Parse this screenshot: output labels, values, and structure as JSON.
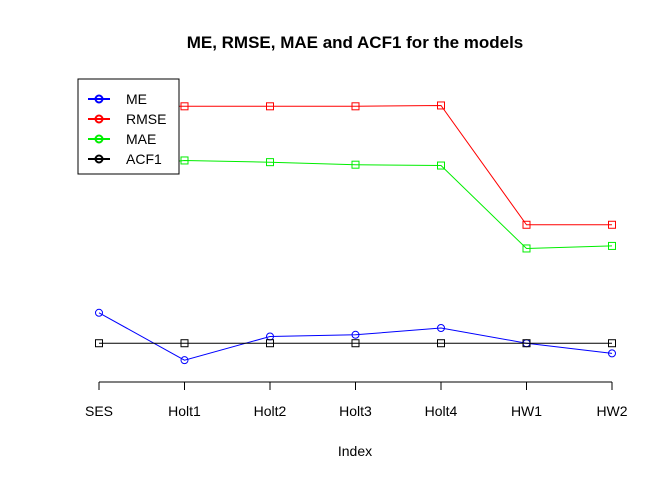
{
  "chart_data": {
    "type": "line",
    "title": "ME, RMSE, MAE and ACF1 for the models",
    "xlabel": "Index",
    "ylabel": "",
    "categories": [
      "SES",
      "Holt1",
      "Holt2",
      "Holt3",
      "Holt4",
      "HW1",
      "HW2"
    ],
    "ylim": [
      -17,
      165
    ],
    "grid": false,
    "legend_position": "top-left",
    "series": [
      {
        "name": "ME",
        "color": "#0000ff",
        "marker": "circle",
        "values": [
          18,
          -10,
          4,
          5,
          9,
          0,
          -6
        ]
      },
      {
        "name": "RMSE",
        "color": "#ff0000",
        "marker": "square",
        "values": [
          140,
          140,
          140,
          140,
          140.5,
          70,
          70
        ]
      },
      {
        "name": "MAE",
        "color": "#00ee00",
        "marker": "square",
        "values": [
          103,
          108,
          107,
          105.5,
          105,
          56,
          57.5
        ]
      },
      {
        "name": "ACF1",
        "color": "#000000",
        "marker": "square",
        "values": [
          0,
          0,
          0,
          0,
          0,
          0,
          0
        ]
      }
    ]
  }
}
